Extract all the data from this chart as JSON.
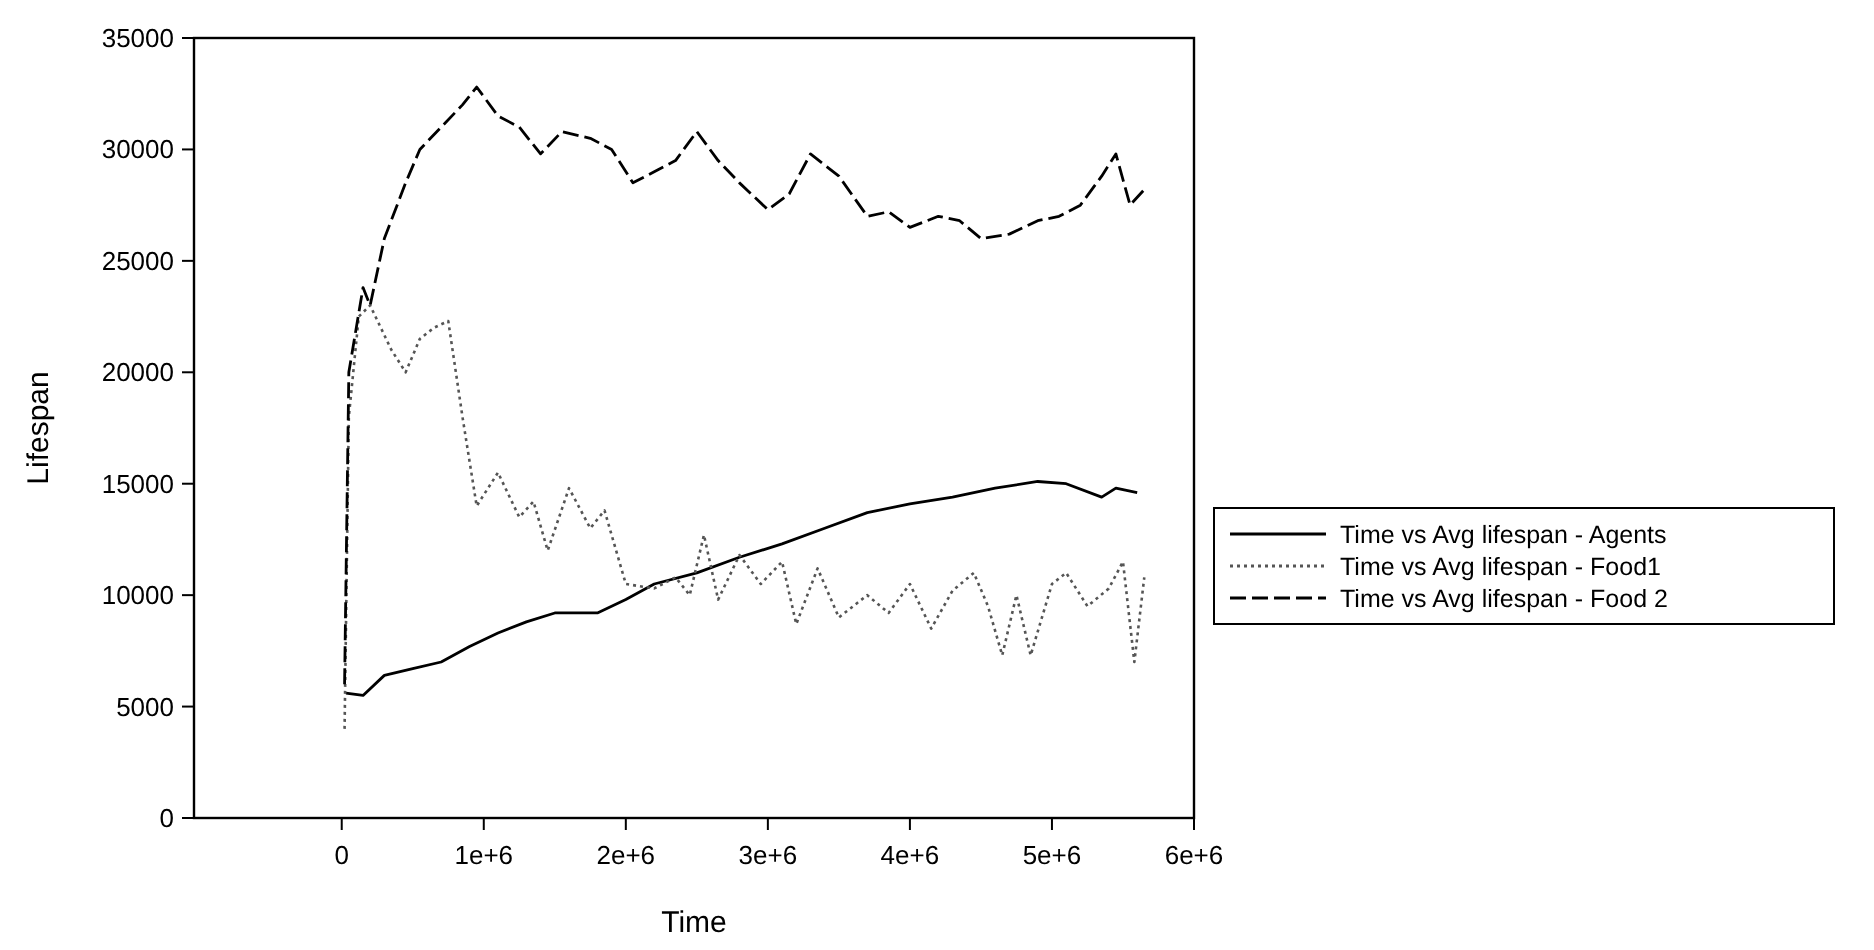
{
  "chart_data": {
    "type": "line",
    "xlabel": "Time",
    "ylabel": "Lifespan",
    "xlim": [
      -1040000,
      6000000
    ],
    "ylim": [
      0,
      35000
    ],
    "xticks": [
      0,
      {
        "value": 1000000,
        "label": "1e+6"
      },
      {
        "value": 2000000,
        "label": "2e+6"
      },
      {
        "value": 3000000,
        "label": "3e+6"
      },
      {
        "value": 4000000,
        "label": "4e+6"
      },
      {
        "value": 5000000,
        "label": "5e+6"
      },
      {
        "value": 6000000,
        "label": "6e+6"
      }
    ],
    "yticks": [
      0,
      5000,
      10000,
      15000,
      20000,
      25000,
      30000,
      35000
    ],
    "grid": false,
    "legend": "right",
    "series": [
      {
        "name": "Time vs  Avg lifespan - Agents",
        "color": "#000000",
        "line_style": "solid",
        "x": [
          30000,
          150000,
          300000,
          500000,
          700000,
          900000,
          1100000,
          1300000,
          1500000,
          1800000,
          2000000,
          2200000,
          2500000,
          2800000,
          3100000,
          3400000,
          3700000,
          4000000,
          4300000,
          4600000,
          4900000,
          5100000,
          5350000,
          5450000,
          5600000
        ],
        "values": [
          5600,
          5500,
          6400,
          6700,
          7000,
          7700,
          8300,
          8800,
          9200,
          9200,
          9800,
          10500,
          11000,
          11700,
          12300,
          13000,
          13700,
          14100,
          14400,
          14800,
          15100,
          15000,
          14400,
          14800,
          14600
        ]
      },
      {
        "name": "Time vs  Avg lifespan - Food1",
        "color": "#555555",
        "line_style": "dotted",
        "x": [
          20000,
          50000,
          120000,
          200000,
          350000,
          450000,
          550000,
          650000,
          750000,
          850000,
          950000,
          1100000,
          1250000,
          1350000,
          1450000,
          1600000,
          1750000,
          1850000,
          2000000,
          2200000,
          2350000,
          2450000,
          2550000,
          2650000,
          2800000,
          2950000,
          3100000,
          3200000,
          3350000,
          3500000,
          3700000,
          3850000,
          4000000,
          4150000,
          4300000,
          4450000,
          4550000,
          4650000,
          4750000,
          4850000,
          5000000,
          5100000,
          5250000,
          5400000,
          5500000,
          5580000,
          5650000
        ],
        "values": [
          4000,
          18000,
          22500,
          23000,
          21000,
          20000,
          21500,
          22000,
          22300,
          18000,
          14000,
          15500,
          13500,
          14200,
          12000,
          14800,
          13000,
          13800,
          10500,
          10300,
          10800,
          10000,
          12700,
          9800,
          11800,
          10500,
          11500,
          8700,
          11200,
          9000,
          10000,
          9200,
          10500,
          8500,
          10200,
          11000,
          9500,
          7300,
          10000,
          7300,
          10500,
          11000,
          9500,
          10300,
          11500,
          7000,
          10800
        ]
      },
      {
        "name": "Time vs  Avg lifespan - Food 2",
        "color": "#000000",
        "line_style": "dashed",
        "x": [
          20000,
          50000,
          150000,
          200000,
          300000,
          450000,
          550000,
          700000,
          850000,
          950000,
          1100000,
          1250000,
          1400000,
          1550000,
          1750000,
          1900000,
          2050000,
          2200000,
          2350000,
          2500000,
          2650000,
          2800000,
          3000000,
          3150000,
          3300000,
          3500000,
          3700000,
          3850000,
          4000000,
          4200000,
          4350000,
          4500000,
          4700000,
          4900000,
          5050000,
          5200000,
          5350000,
          5450000,
          5550000,
          5650000
        ],
        "values": [
          6000,
          20000,
          23800,
          23000,
          26000,
          28500,
          30000,
          31000,
          32000,
          32800,
          31500,
          31000,
          29800,
          30800,
          30500,
          30000,
          28500,
          29000,
          29500,
          30800,
          29500,
          28500,
          27300,
          28000,
          29800,
          28800,
          27000,
          27200,
          26500,
          27000,
          26800,
          26000,
          26200,
          26800,
          27000,
          27500,
          28800,
          29800,
          27500,
          28200
        ]
      }
    ]
  }
}
